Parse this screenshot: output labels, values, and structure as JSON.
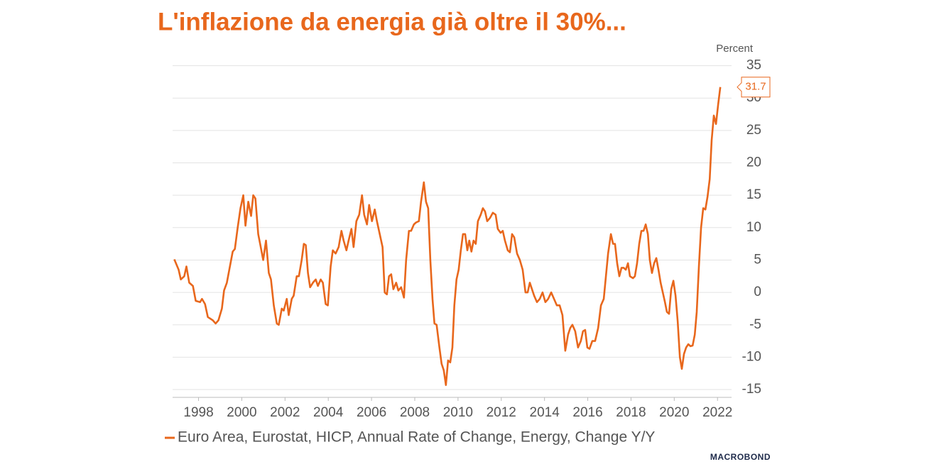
{
  "chart_data": {
    "type": "line",
    "title": "L'inflazione da energia già oltre il 30%...",
    "y_axis_label": "Percent",
    "source": "MACROBOND",
    "xlim": [
      1996.8,
      2022.65
    ],
    "ylim": [
      -16.2,
      35.5
    ],
    "xticks": [
      1998,
      2000,
      2002,
      2004,
      2006,
      2008,
      2010,
      2012,
      2014,
      2016,
      2018,
      2020,
      2022
    ],
    "yticks": [
      -15,
      -10,
      -5,
      0,
      5,
      10,
      15,
      20,
      25,
      30,
      35
    ],
    "grid": true,
    "x": [
      1996.88,
      1997.08,
      1997.18,
      1997.34,
      1997.44,
      1997.57,
      1997.74,
      1997.87,
      1998.07,
      1998.16,
      1998.3,
      1998.43,
      1998.66,
      1998.79,
      1998.92,
      1999.08,
      1999.18,
      1999.31,
      1999.45,
      1999.58,
      1999.68,
      1999.81,
      1999.94,
      2000.07,
      2000.17,
      2000.3,
      2000.43,
      2000.53,
      2000.63,
      2000.76,
      2000.86,
      2000.99,
      2001.12,
      2001.25,
      2001.35,
      2001.48,
      2001.62,
      2001.71,
      2001.85,
      2001.94,
      2002.08,
      2002.17,
      2002.31,
      2002.4,
      2002.54,
      2002.64,
      2002.77,
      2002.87,
      2002.96,
      2003.06,
      2003.16,
      2003.29,
      2003.42,
      2003.52,
      2003.65,
      2003.75,
      2003.88,
      2003.98,
      2004.11,
      2004.21,
      2004.34,
      2004.48,
      2004.61,
      2004.71,
      2004.84,
      2004.94,
      2005.07,
      2005.17,
      2005.3,
      2005.43,
      2005.56,
      2005.66,
      2005.79,
      2005.89,
      2006.02,
      2006.15,
      2006.25,
      2006.38,
      2006.51,
      2006.61,
      2006.71,
      2006.81,
      2006.91,
      2007.01,
      2007.14,
      2007.24,
      2007.37,
      2007.5,
      2007.6,
      2007.73,
      2007.83,
      2007.96,
      2008.06,
      2008.19,
      2008.29,
      2008.42,
      2008.52,
      2008.62,
      2008.72,
      2008.82,
      2008.91,
      2009.01,
      2009.14,
      2009.24,
      2009.34,
      2009.44,
      2009.54,
      2009.64,
      2009.74,
      2009.83,
      2009.93,
      2010.03,
      2010.13,
      2010.23,
      2010.33,
      2010.43,
      2010.52,
      2010.62,
      2010.72,
      2010.82,
      2010.92,
      2011.05,
      2011.15,
      2011.25,
      2011.35,
      2011.48,
      2011.61,
      2011.74,
      2011.84,
      2011.97,
      2012.07,
      2012.17,
      2012.3,
      2012.4,
      2012.5,
      2012.6,
      2012.73,
      2012.86,
      2012.99,
      2013.12,
      2013.22,
      2013.32,
      2013.42,
      2013.52,
      2013.65,
      2013.78,
      2013.91,
      2014.04,
      2014.17,
      2014.31,
      2014.44,
      2014.57,
      2014.7,
      2014.83,
      2014.96,
      2015.09,
      2015.19,
      2015.29,
      2015.42,
      2015.55,
      2015.68,
      2015.78,
      2015.88,
      2015.98,
      2016.08,
      2016.21,
      2016.34,
      2016.48,
      2016.61,
      2016.74,
      2016.84,
      2016.94,
      2017.07,
      2017.17,
      2017.26,
      2017.36,
      2017.46,
      2017.56,
      2017.66,
      2017.76,
      2017.86,
      2017.95,
      2018.09,
      2018.18,
      2018.28,
      2018.38,
      2018.48,
      2018.58,
      2018.68,
      2018.78,
      2018.87,
      2018.97,
      2019.07,
      2019.17,
      2019.27,
      2019.37,
      2019.47,
      2019.57,
      2019.66,
      2019.76,
      2019.86,
      2019.96,
      2020.06,
      2020.16,
      2020.26,
      2020.35,
      2020.45,
      2020.55,
      2020.65,
      2020.75,
      2020.85,
      2020.95,
      2021.04,
      2021.14,
      2021.24,
      2021.34,
      2021.44,
      2021.54,
      2021.64,
      2021.73,
      2021.83,
      2021.93,
      2022.03,
      2022.13
    ],
    "series": [
      {
        "name": "Euro Area, Eurostat, HICP, Annual Rate of Change, Energy, Change Y/Y",
        "color": "#e8671c",
        "values": [
          5.1,
          3.5,
          2.0,
          2.5,
          4.0,
          1.5,
          1.0,
          -1.3,
          -1.5,
          -1.0,
          -1.8,
          -3.8,
          -4.3,
          -4.8,
          -4.3,
          -2.5,
          0.3,
          1.5,
          4.0,
          6.3,
          6.7,
          10.0,
          13.0,
          15.0,
          10.3,
          14.0,
          11.8,
          15.0,
          14.5,
          9.0,
          7.3,
          5.0,
          8.0,
          3.0,
          2.0,
          -2.0,
          -4.8,
          -5.0,
          -2.5,
          -2.8,
          -1.0,
          -3.5,
          -1.0,
          -0.5,
          2.5,
          2.5,
          5.0,
          7.5,
          7.3,
          3.0,
          0.8,
          1.5,
          2.0,
          1.0,
          2.0,
          1.5,
          -1.8,
          -2.0,
          4.0,
          6.5,
          6.0,
          7.0,
          9.5,
          8.0,
          6.5,
          8.0,
          9.8,
          7.0,
          11.0,
          12.0,
          15.0,
          12.0,
          10.5,
          13.5,
          11.0,
          12.8,
          11.0,
          9.0,
          7.0,
          0.0,
          -0.3,
          2.5,
          2.8,
          0.5,
          1.5,
          0.3,
          0.8,
          -0.8,
          5.0,
          9.5,
          9.5,
          10.5,
          10.8,
          11.0,
          14.0,
          17.0,
          14.0,
          13.0,
          5.0,
          -1.0,
          -4.8,
          -5.0,
          -8.5,
          -11.0,
          -12.0,
          -14.3,
          -10.5,
          -10.8,
          -8.5,
          -2.0,
          2.0,
          3.5,
          6.5,
          9.0,
          9.0,
          6.5,
          8.0,
          6.3,
          8.0,
          7.5,
          11.0,
          12.0,
          13.0,
          12.5,
          11.0,
          11.5,
          12.3,
          12.0,
          9.8,
          9.2,
          9.5,
          8.0,
          6.5,
          6.2,
          9.0,
          8.5,
          6.0,
          5.0,
          3.5,
          0.0,
          0.0,
          1.5,
          0.5,
          -0.5,
          -1.5,
          -1.0,
          0.0,
          -1.5,
          -1.0,
          0.0,
          -1.0,
          -2.0,
          -2.0,
          -3.5,
          -9.0,
          -6.5,
          -5.5,
          -5.0,
          -6.0,
          -8.5,
          -7.5,
          -6.0,
          -5.8,
          -8.5,
          -8.7,
          -7.5,
          -7.5,
          -5.5,
          -2.0,
          -1.0,
          2.5,
          6.0,
          9.0,
          7.5,
          7.5,
          4.5,
          2.5,
          3.8,
          3.8,
          3.5,
          4.5,
          2.5,
          2.2,
          2.5,
          4.5,
          7.5,
          9.5,
          9.5,
          10.5,
          9.0,
          5.0,
          3.0,
          4.5,
          5.3,
          3.5,
          1.5,
          0.0,
          -1.5,
          -3.0,
          -3.3,
          0.5,
          1.8,
          -0.5,
          -4.5,
          -10.0,
          -11.8,
          -9.5,
          -8.5,
          -8.0,
          -8.3,
          -8.2,
          -6.5,
          -3.0,
          4.0,
          10.0,
          13.0,
          12.8,
          14.8,
          17.5,
          23.5,
          27.3,
          26.0,
          29.0,
          31.7
        ]
      }
    ]
  }
}
